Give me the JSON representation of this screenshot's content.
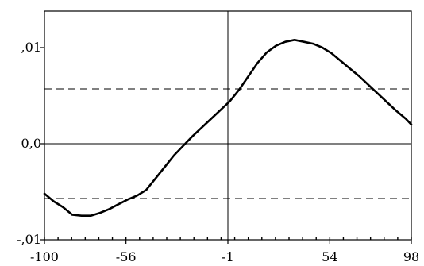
{
  "chart_data": {
    "type": "line",
    "title": "",
    "xlabel": "",
    "ylabel": "",
    "xlim": [
      -100,
      98
    ],
    "ylim": [
      -0.01,
      0.0138
    ],
    "x_ticks": [
      {
        "value": -100,
        "label": "-100"
      },
      {
        "value": -56,
        "label": "-56"
      },
      {
        "value": -1,
        "label": "-1"
      },
      {
        "value": 54,
        "label": "54"
      },
      {
        "value": 98,
        "label": "98"
      }
    ],
    "y_ticks": [
      {
        "value": 0.01,
        "label": ",01"
      },
      {
        "value": 0.0,
        "label": "0,0"
      },
      {
        "value": -0.01,
        "label": "-,01"
      }
    ],
    "reference_lines": [
      {
        "orientation": "horizontal",
        "value": 0.0,
        "style": "solid"
      },
      {
        "orientation": "vertical",
        "value": -1,
        "style": "solid"
      },
      {
        "orientation": "horizontal",
        "value": 0.0057,
        "style": "dashed"
      },
      {
        "orientation": "horizontal",
        "value": -0.0057,
        "style": "dashed"
      }
    ],
    "series": [
      {
        "color": "#000000",
        "points": [
          [
            -100,
            -0.0052
          ],
          [
            -95,
            -0.006
          ],
          [
            -90,
            -0.0066
          ],
          [
            -85,
            -0.0074
          ],
          [
            -80,
            -0.0075
          ],
          [
            -75,
            -0.0075
          ],
          [
            -70,
            -0.0072
          ],
          [
            -65,
            -0.0068
          ],
          [
            -60,
            -0.0063
          ],
          [
            -55,
            -0.0058
          ],
          [
            -50,
            -0.0054
          ],
          [
            -45,
            -0.0048
          ],
          [
            -40,
            -0.0036
          ],
          [
            -35,
            -0.0024
          ],
          [
            -30,
            -0.0012
          ],
          [
            -25,
            -0.0002
          ],
          [
            -20,
            0.0008
          ],
          [
            -15,
            0.0017
          ],
          [
            -10,
            0.0026
          ],
          [
            -5,
            0.0035
          ],
          [
            0,
            0.0044
          ],
          [
            5,
            0.0056
          ],
          [
            10,
            0.007
          ],
          [
            15,
            0.0084
          ],
          [
            20,
            0.0095
          ],
          [
            25,
            0.0102
          ],
          [
            30,
            0.0106
          ],
          [
            35,
            0.0108
          ],
          [
            40,
            0.0106
          ],
          [
            45,
            0.0104
          ],
          [
            50,
            0.01
          ],
          [
            55,
            0.0094
          ],
          [
            60,
            0.0086
          ],
          [
            65,
            0.0078
          ],
          [
            70,
            0.007
          ],
          [
            75,
            0.0061
          ],
          [
            80,
            0.0052
          ],
          [
            85,
            0.0043
          ],
          [
            90,
            0.0034
          ],
          [
            95,
            0.0026
          ],
          [
            98,
            0.002
          ]
        ]
      }
    ],
    "grid": false,
    "minor_x_ticks": 27
  }
}
